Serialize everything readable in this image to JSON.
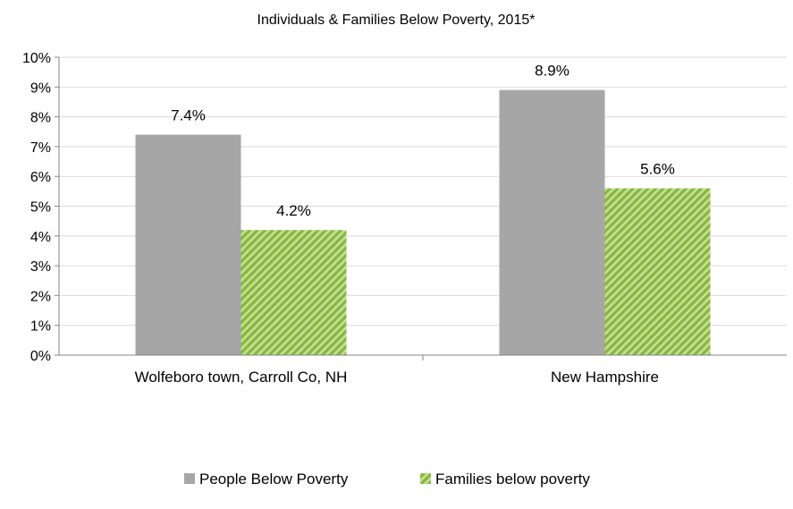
{
  "chart_data": {
    "type": "bar",
    "title": "Individuals & Families Below Poverty, 2015*",
    "categories": [
      "Wolfeboro town, Carroll Co, NH",
      "New Hampshire"
    ],
    "series": [
      {
        "name": "People Below Poverty",
        "values": [
          7.4,
          8.9
        ],
        "labels": [
          "7.4%",
          "8.9%"
        ],
        "color": "#a6a6a6",
        "pattern": "solid"
      },
      {
        "name": "Families below poverty",
        "values": [
          4.2,
          5.6
        ],
        "labels": [
          "4.2%",
          "5.6%"
        ],
        "color": "#92c047",
        "pattern": "diagonal-stripes"
      }
    ],
    "ylim": [
      0,
      10
    ],
    "yticks": [
      "0%",
      "1%",
      "2%",
      "3%",
      "4%",
      "5%",
      "6%",
      "7%",
      "8%",
      "9%",
      "10%"
    ],
    "xlabel": "",
    "ylabel": "",
    "grid": true,
    "legend": "bottom"
  }
}
